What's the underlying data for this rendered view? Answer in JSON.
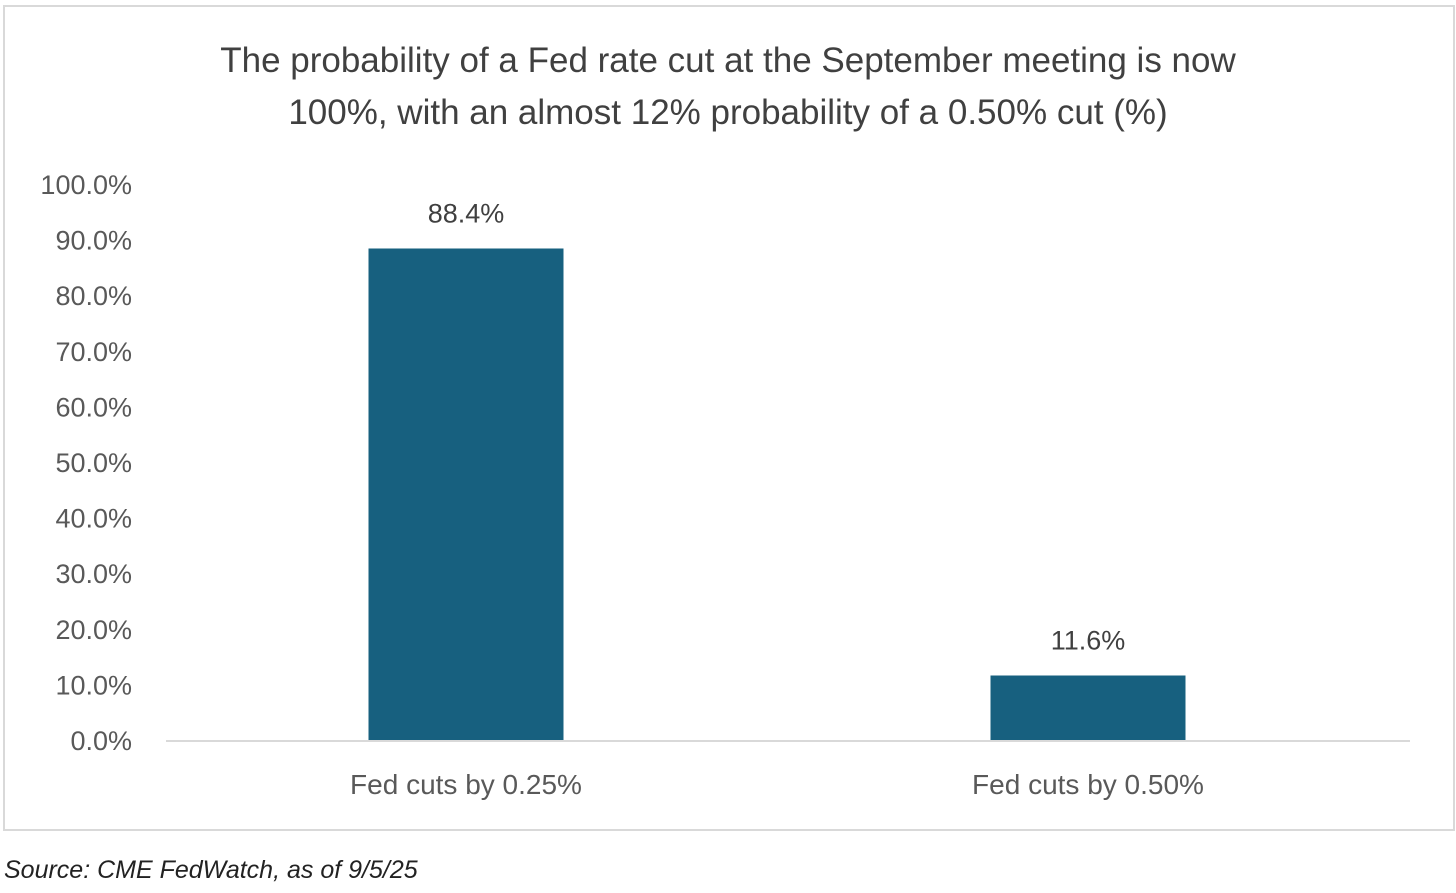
{
  "chart_data": {
    "type": "bar",
    "title_lines": [
      "The probability of a Fed rate cut at the September meeting is now",
      "100%, with an almost 12% probability of a 0.50% cut (%)"
    ],
    "categories": [
      "Fed cuts by 0.25%",
      "Fed cuts by 0.50%"
    ],
    "values": [
      88.4,
      11.6
    ],
    "data_labels": [
      "88.4%",
      "11.6%"
    ],
    "xlabel": "",
    "ylabel": "",
    "ylim": [
      0,
      100
    ],
    "yticks": [
      0,
      10,
      20,
      30,
      40,
      50,
      60,
      70,
      80,
      90,
      100
    ],
    "ytick_labels": [
      "0.0%",
      "10.0%",
      "20.0%",
      "30.0%",
      "40.0%",
      "50.0%",
      "60.0%",
      "70.0%",
      "80.0%",
      "90.0%",
      "100.0%"
    ],
    "grid": false,
    "bar_color": "#17607f"
  },
  "source": "Source: CME FedWatch, as of 9/5/25"
}
